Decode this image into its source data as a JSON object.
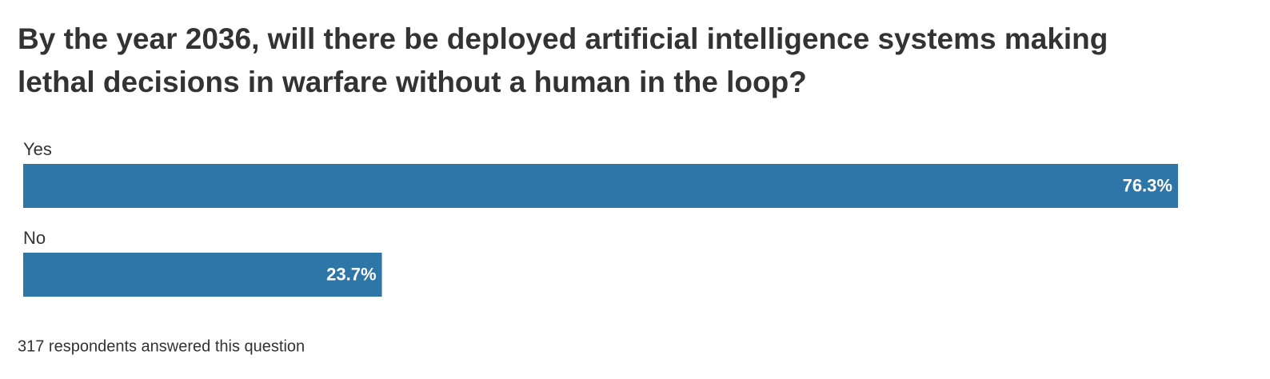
{
  "chart_data": {
    "type": "bar",
    "orientation": "horizontal",
    "title": "By the year 2036, will there be deployed artificial intelligence systems making lethal decisions in warfare without a human in the loop?",
    "categories": [
      "Yes",
      "No"
    ],
    "values": [
      76.3,
      23.7
    ],
    "value_labels": [
      "76.3%",
      "23.7%"
    ],
    "color": "#2e75a8",
    "footnote": "317 respondents answered this question"
  }
}
